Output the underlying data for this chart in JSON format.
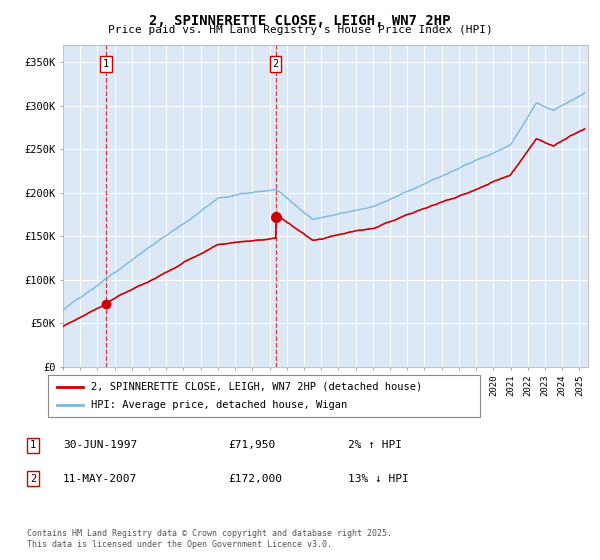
{
  "title": "2, SPINNERETTE CLOSE, LEIGH, WN7 2HP",
  "subtitle": "Price paid vs. HM Land Registry's House Price Index (HPI)",
  "ylabel_ticks": [
    "£0",
    "£50K",
    "£100K",
    "£150K",
    "£200K",
    "£250K",
    "£300K",
    "£350K"
  ],
  "ylim": [
    0,
    370000
  ],
  "xlim_start": 1995.0,
  "xlim_end": 2025.5,
  "hpi_color": "#7ab8e0",
  "price_color": "#cc0000",
  "bg_color": "#dce8f5",
  "marker1_x": 1997.5,
  "marker1_y": 71950,
  "marker2_x": 2007.36,
  "marker2_y": 172000,
  "legend_line1": "2, SPINNERETTE CLOSE, LEIGH, WN7 2HP (detached house)",
  "legend_line2": "HPI: Average price, detached house, Wigan",
  "note1_date": "30-JUN-1997",
  "note1_price": "£71,950",
  "note1_hpi": "2% ↑ HPI",
  "note2_date": "11-MAY-2007",
  "note2_price": "£172,000",
  "note2_hpi": "13% ↓ HPI",
  "copyright": "Contains HM Land Registry data © Crown copyright and database right 2025.\nThis data is licensed under the Open Government Licence v3.0."
}
